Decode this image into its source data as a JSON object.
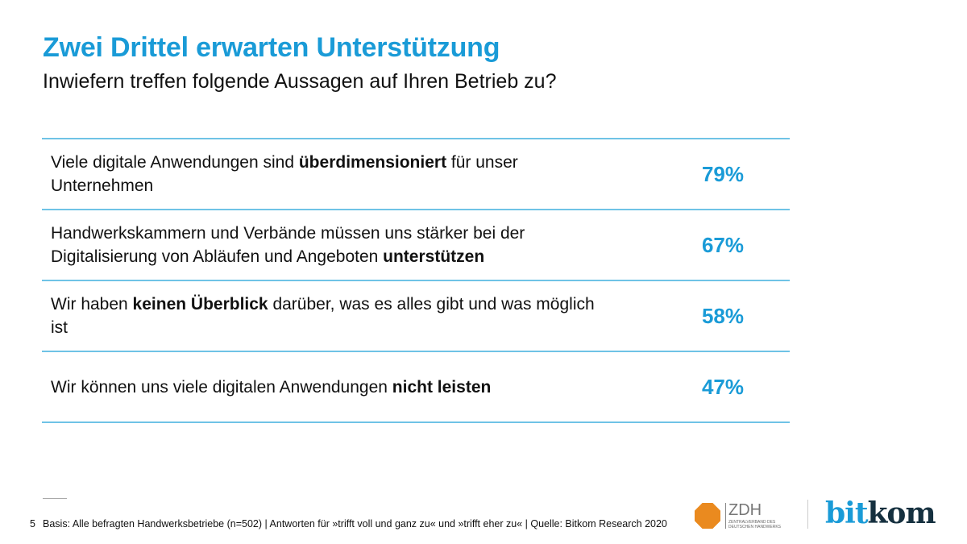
{
  "title": "Zwei Drittel erwarten Unterstützung",
  "subtitle": "Inwiefern treffen folgende Aussagen auf Ihren Betrieb zu?",
  "accent_color": "#1a9bd7",
  "rows": [
    {
      "parts": [
        "Viele digitale Anwendungen sind ",
        "überdimensioniert",
        " für unser Unternehmen"
      ],
      "percent": "79%"
    },
    {
      "parts": [
        "Handwerkskammern und Verbände müssen uns stärker bei der Digitalisierung von Abläufen und Angeboten ",
        "unterstützen",
        ""
      ],
      "percent": "67%"
    },
    {
      "parts": [
        "Wir haben ",
        "keinen Überblick",
        " darüber, was es alles gibt und was möglich ist"
      ],
      "percent": "58%"
    },
    {
      "parts": [
        "Wir können uns viele digitalen Anwendungen ",
        "nicht leisten",
        ""
      ],
      "percent": "47%"
    }
  ],
  "footer": {
    "page_number": "5",
    "text": "Basis: Alle befragten Handwerksbetriebe (n=502) | Antworten für »trifft voll und ganz zu« und »trifft eher zu« | Quelle: Bitkom Research 2020"
  },
  "logos": {
    "zdh": {
      "name": "ZDH",
      "subtitle": "ZENTRALVERBAND DES DEUTSCHEN HANDWERKS"
    },
    "bitkom": {
      "part1": "bit",
      "part2": "kom"
    }
  }
}
